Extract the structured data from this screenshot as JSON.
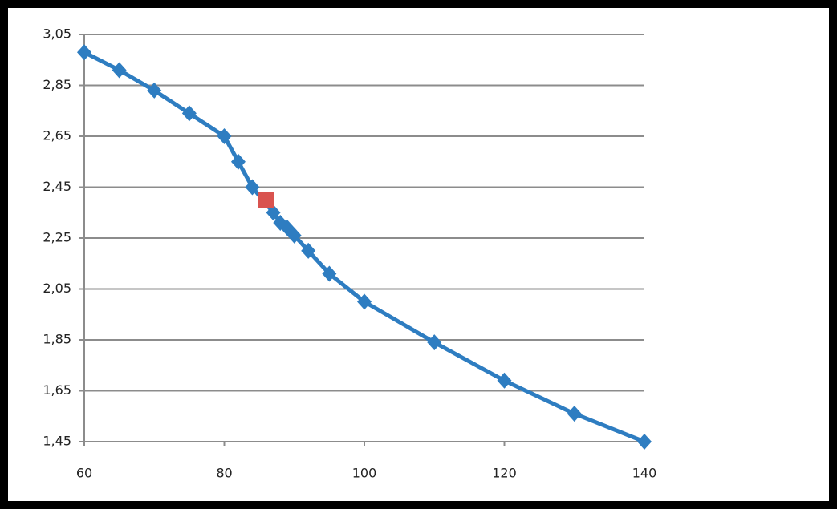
{
  "chart_data": {
    "type": "scatter",
    "series": [
      {
        "color": "#2e7dc1",
        "line": true,
        "marker": "diamond",
        "x": [
          60,
          65,
          70,
          75,
          80,
          82,
          84,
          87,
          88,
          89,
          90,
          92,
          95,
          100,
          110,
          120,
          130,
          140
        ],
        "values": [
          2.98,
          2.91,
          2.83,
          2.74,
          2.65,
          2.55,
          2.45,
          2.35,
          2.31,
          2.29,
          2.26,
          2.2,
          2.11,
          2.0,
          1.84,
          1.69,
          1.56,
          1.45
        ]
      },
      {
        "color": "#d9534f",
        "line": false,
        "marker": "square",
        "x": [
          86
        ],
        "values": [
          2.4
        ]
      }
    ],
    "xlim": [
      60,
      140
    ],
    "xticks": [
      60,
      80,
      100,
      120,
      140
    ],
    "ylim": [
      1.45,
      3.05
    ],
    "yticks": [
      {
        "value": 1.45,
        "label": "1,45"
      },
      {
        "value": 1.65,
        "label": "1,65"
      },
      {
        "value": 1.85,
        "label": "1,85"
      },
      {
        "value": 2.05,
        "label": "2,05"
      },
      {
        "value": 2.25,
        "label": "2,25"
      },
      {
        "value": 2.45,
        "label": "2,45"
      },
      {
        "value": 2.65,
        "label": "2,65"
      },
      {
        "value": 2.85,
        "label": "2,85"
      },
      {
        "value": 3.05,
        "label": "3,05"
      }
    ],
    "grid": true
  }
}
